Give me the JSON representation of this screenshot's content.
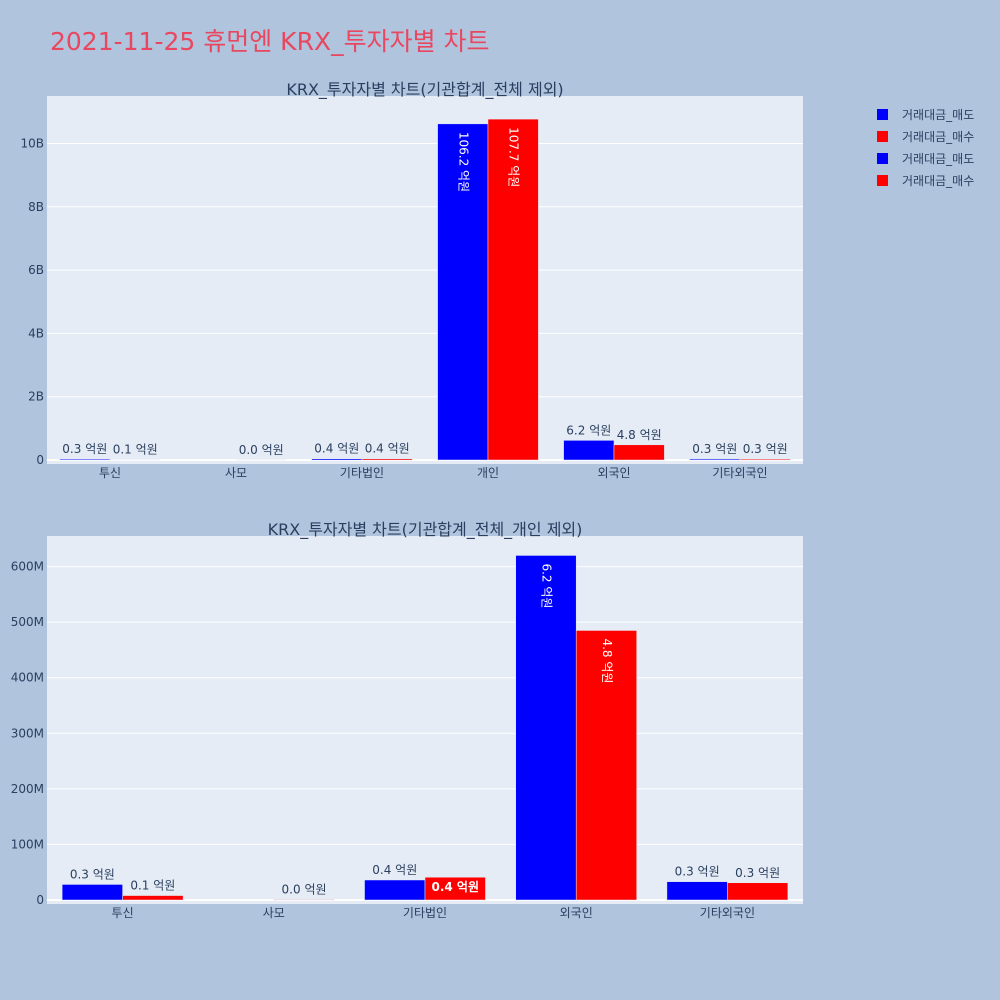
{
  "page": {
    "title": "2021-11-25 휴먼엔 KRX_투자자별 차트"
  },
  "colors": {
    "background": "#b0c4de",
    "plot_background": "#e5ecf6",
    "sell": "#0000ff",
    "buy": "#ff0000",
    "title": "#e8475f",
    "text": "#2a3f5f"
  },
  "legend": {
    "placement": "top-right",
    "items": [
      {
        "label": "거래대금_매도",
        "color": "#0000ff"
      },
      {
        "label": "거래대금_매수",
        "color": "#ff0000"
      },
      {
        "label": "거래대금_매도",
        "color": "#0000ff"
      },
      {
        "label": "거래대금_매수",
        "color": "#ff0000"
      }
    ]
  },
  "chart_data": [
    {
      "type": "bar",
      "title": "KRX_투자자별 차트(기관합계_전체 제외)",
      "categories": [
        "투신",
        "사모",
        "기타법인",
        "개인",
        "외국인",
        "기타외국인"
      ],
      "series": [
        {
          "name": "거래대금_매도",
          "color": "#0000ff",
          "values": [
            30000000,
            0,
            40000000,
            10620000000,
            620000000,
            33000000
          ],
          "labels": [
            "0.3 억원",
            "",
            "0.4 억원",
            "106.2 억원",
            "6.2 억원",
            "0.3 억원"
          ]
        },
        {
          "name": "거래대금_매수",
          "color": "#ff0000",
          "values": [
            10000000,
            3000000,
            40000000,
            10770000000,
            480000000,
            30000000
          ],
          "labels": [
            "0.1 억원",
            "0.0 억원",
            "0.4 억원",
            "107.7 억원",
            "4.8 억원",
            "0.3 억원"
          ]
        }
      ],
      "ylim": [
        0,
        11500000000
      ],
      "yticks": [
        {
          "v": 0,
          "t": "0"
        },
        {
          "v": 2000000000,
          "t": "2B"
        },
        {
          "v": 4000000000,
          "t": "4B"
        },
        {
          "v": 6000000000,
          "t": "6B"
        },
        {
          "v": 8000000000,
          "t": "8B"
        },
        {
          "v": 10000000000,
          "t": "10B"
        }
      ],
      "grid": true
    },
    {
      "type": "bar",
      "title": "KRX_투자자별 차트(기관합계_전체_개인 제외)",
      "categories": [
        "투신",
        "사모",
        "기타법인",
        "외국인",
        "기타외국인"
      ],
      "series": [
        {
          "name": "거래대금_매도",
          "color": "#0000ff",
          "values": [
            28000000,
            0,
            36000000,
            620000000,
            33000000
          ],
          "labels": [
            "0.3 억원",
            "",
            "0.4 억원",
            "6.2 억원",
            "0.3 억원"
          ]
        },
        {
          "name": "거래대금_매수",
          "color": "#ff0000",
          "values": [
            8000000,
            1000000,
            41000000,
            485000000,
            31000000
          ],
          "labels": [
            "0.1 억원",
            "0.0 억원",
            "0.4 억원",
            "4.8 억원",
            "0.3 억원"
          ]
        }
      ],
      "ylim": [
        0,
        655000000
      ],
      "yticks": [
        {
          "v": 0,
          "t": "0"
        },
        {
          "v": 100000000,
          "t": "100M"
        },
        {
          "v": 200000000,
          "t": "200M"
        },
        {
          "v": 300000000,
          "t": "300M"
        },
        {
          "v": 400000000,
          "t": "400M"
        },
        {
          "v": 500000000,
          "t": "500M"
        },
        {
          "v": 600000000,
          "t": "600M"
        }
      ],
      "grid": true
    }
  ]
}
